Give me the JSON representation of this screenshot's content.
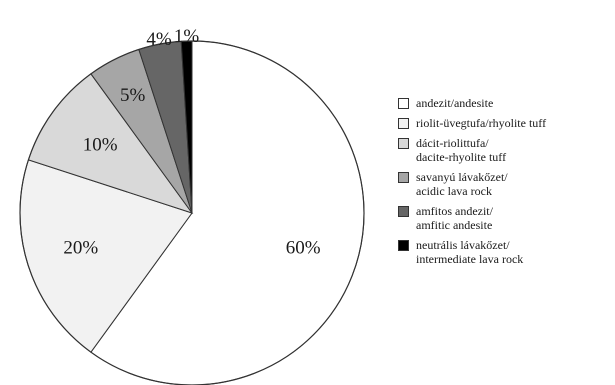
{
  "chart_data": {
    "type": "pie",
    "title": "",
    "slices": [
      {
        "label": "60%",
        "value": 60,
        "legend_lines": [
          "andezit/andesite"
        ],
        "color": "#ffffff"
      },
      {
        "label": "20%",
        "value": 20,
        "legend_lines": [
          "riolit-üvegtufa/rhyolite tuff"
        ],
        "color": "#f2f2f2"
      },
      {
        "label": "10%",
        "value": 10,
        "legend_lines": [
          "dácit-riolittufa/",
          "dacite-rhyolite tuff"
        ],
        "color": "#d9d9d9"
      },
      {
        "label": "5%",
        "value": 5,
        "legend_lines": [
          "savanyú lávakőzet/",
          "acidic lava rock"
        ],
        "color": "#a6a6a6"
      },
      {
        "label": "4%",
        "value": 4,
        "legend_lines": [
          "amfitos andezit/",
          "amfitic andesite"
        ],
        "color": "#666666"
      },
      {
        "label": "1%",
        "value": 1,
        "legend_lines": [
          "neutrális lávakőzet/",
          "intermediate lava rock"
        ],
        "color": "#000000"
      }
    ],
    "start": "12 o'clock",
    "direction": "clockwise",
    "legend_position": "right"
  }
}
